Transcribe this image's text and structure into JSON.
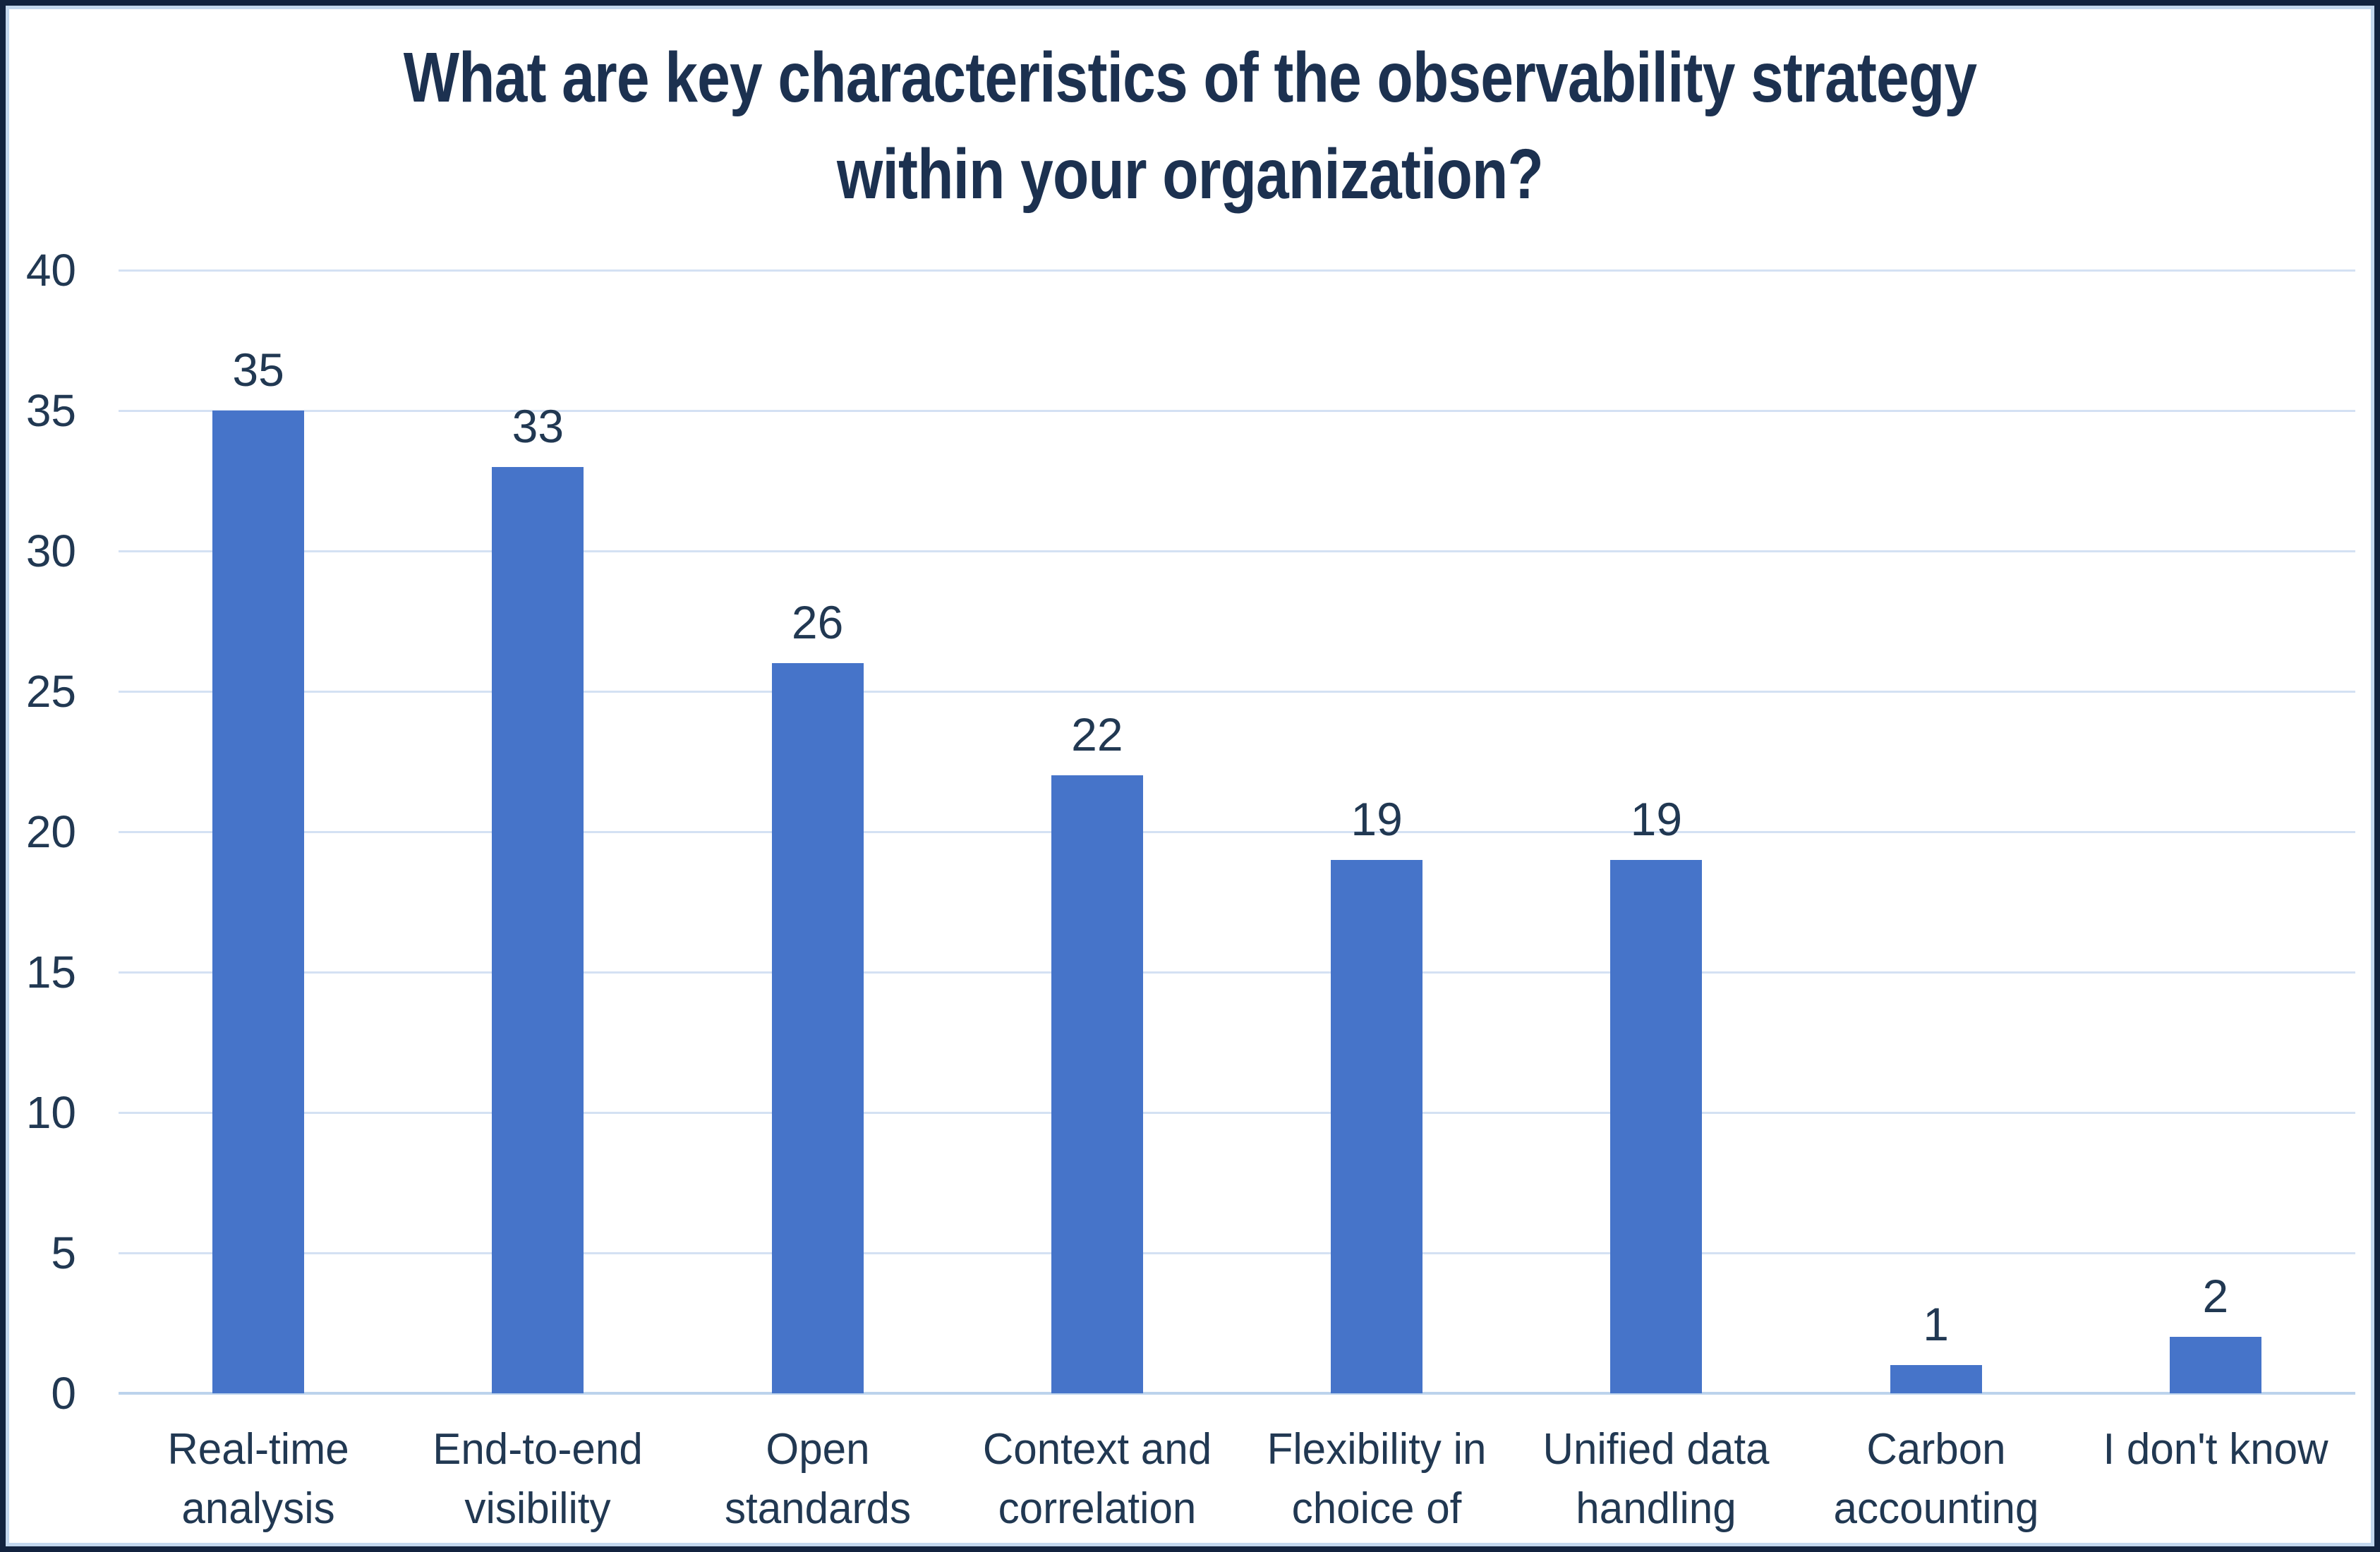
{
  "chart_data": {
    "type": "bar",
    "title": "What are key characteristics of the observability strategy within your organization?",
    "title_lines": [
      "What are key characteristics of the observability strategy",
      "within your organization?"
    ],
    "categories": [
      "Real-time analysis",
      "End-to-end visibility",
      "Open standards",
      "Context and correlation",
      "Flexibility in choice of tools",
      "Unified data handling",
      "Carbon accounting",
      "I don't know"
    ],
    "values": [
      35,
      33,
      26,
      22,
      19,
      19,
      1,
      2
    ],
    "xlabel": "",
    "ylabel": "",
    "ylim": [
      0,
      40
    ],
    "yticks": [
      0,
      5,
      10,
      15,
      20,
      25,
      30,
      35,
      40
    ],
    "gridlines": "horizontal",
    "legend": "none",
    "colors": {
      "bar": "#4674C9",
      "grid": "#D4E1F3",
      "axis": "#BCD3EC",
      "text": "#213852",
      "title": "#1C3150",
      "border": "#13233F",
      "inner_border": "#C3D7EE",
      "background": "#FFFFFF"
    }
  }
}
